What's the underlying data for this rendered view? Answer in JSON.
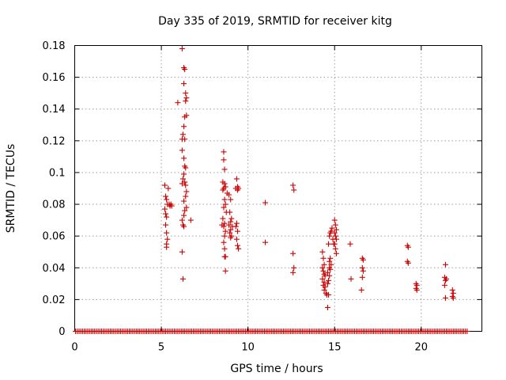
{
  "chart_data": {
    "type": "scatter",
    "title": "Day 335 of 2019, SRMTID for receiver kitg",
    "xlabel": "GPS time / hours",
    "ylabel": "SRMTID / TECUs",
    "xlim": [
      0,
      23.5
    ],
    "ylim": [
      0,
      0.18
    ],
    "xticks": [
      0,
      5,
      10,
      15,
      20
    ],
    "xtick_labels": [
      "0",
      "5",
      "10",
      "15",
      "20"
    ],
    "yticks": [
      0,
      0.02,
      0.04,
      0.06,
      0.08,
      0.1,
      0.12,
      0.14,
      0.16,
      0.18
    ],
    "ytick_labels": [
      "0",
      "0.02",
      "0.04",
      "0.06",
      "0.08",
      "0.1",
      "0.12",
      "0.14",
      "0.16",
      "0.18"
    ],
    "grid": true,
    "marker": "plus",
    "color": "#cc0000",
    "baseline_band": {
      "y": 0,
      "x_start": 0.05,
      "x_end": 22.7,
      "step": 0.1
    },
    "series": [
      {
        "name": "SRMTID",
        "points": [
          [
            5.2,
            0.092
          ],
          [
            5.25,
            0.085
          ],
          [
            5.3,
            0.083
          ],
          [
            5.35,
            0.08
          ],
          [
            5.2,
            0.077
          ],
          [
            5.25,
            0.074
          ],
          [
            5.3,
            0.072
          ],
          [
            5.25,
            0.067
          ],
          [
            5.3,
            0.062
          ],
          [
            5.35,
            0.058
          ],
          [
            5.3,
            0.055
          ],
          [
            5.3,
            0.053
          ],
          [
            5.4,
            0.09
          ],
          [
            5.45,
            0.08
          ],
          [
            5.5,
            0.079
          ],
          [
            5.55,
            0.08
          ],
          [
            5.6,
            0.079
          ],
          [
            5.95,
            0.144
          ],
          [
            6.2,
            0.178
          ],
          [
            6.3,
            0.166
          ],
          [
            6.35,
            0.165
          ],
          [
            6.3,
            0.156
          ],
          [
            6.4,
            0.15
          ],
          [
            6.45,
            0.147
          ],
          [
            6.4,
            0.145
          ],
          [
            6.35,
            0.135
          ],
          [
            6.45,
            0.136
          ],
          [
            6.3,
            0.129
          ],
          [
            6.25,
            0.124
          ],
          [
            6.2,
            0.121
          ],
          [
            6.35,
            0.121
          ],
          [
            6.2,
            0.114
          ],
          [
            6.3,
            0.109
          ],
          [
            6.35,
            0.104
          ],
          [
            6.4,
            0.103
          ],
          [
            6.3,
            0.099
          ],
          [
            6.25,
            0.096
          ],
          [
            6.35,
            0.094
          ],
          [
            6.2,
            0.093
          ],
          [
            6.4,
            0.092
          ],
          [
            6.45,
            0.088
          ],
          [
            6.4,
            0.085
          ],
          [
            6.3,
            0.082
          ],
          [
            6.45,
            0.078
          ],
          [
            6.35,
            0.076
          ],
          [
            6.3,
            0.073
          ],
          [
            6.2,
            0.07
          ],
          [
            6.25,
            0.067
          ],
          [
            6.3,
            0.066
          ],
          [
            6.2,
            0.05
          ],
          [
            6.25,
            0.033
          ],
          [
            6.7,
            0.07
          ],
          [
            8.6,
            0.113
          ],
          [
            8.6,
            0.108
          ],
          [
            8.65,
            0.102
          ],
          [
            8.55,
            0.094
          ],
          [
            8.65,
            0.093
          ],
          [
            8.6,
            0.09
          ],
          [
            8.7,
            0.091
          ],
          [
            8.55,
            0.089
          ],
          [
            8.8,
            0.087
          ],
          [
            8.65,
            0.083
          ],
          [
            8.7,
            0.08
          ],
          [
            8.6,
            0.078
          ],
          [
            8.75,
            0.075
          ],
          [
            8.55,
            0.071
          ],
          [
            8.65,
            0.068
          ],
          [
            8.5,
            0.067
          ],
          [
            8.6,
            0.066
          ],
          [
            8.7,
            0.063
          ],
          [
            8.65,
            0.06
          ],
          [
            8.6,
            0.056
          ],
          [
            8.65,
            0.052
          ],
          [
            8.7,
            0.047
          ],
          [
            8.65,
            0.047
          ],
          [
            8.7,
            0.038
          ],
          [
            8.9,
            0.086
          ],
          [
            9.0,
            0.083
          ],
          [
            8.95,
            0.075
          ],
          [
            9.05,
            0.071
          ],
          [
            9.0,
            0.069
          ],
          [
            8.9,
            0.067
          ],
          [
            9.1,
            0.066
          ],
          [
            9.0,
            0.064
          ],
          [
            8.95,
            0.062
          ],
          [
            9.05,
            0.06
          ],
          [
            9.0,
            0.059
          ],
          [
            9.35,
            0.096
          ],
          [
            9.4,
            0.091
          ],
          [
            9.45,
            0.09
          ],
          [
            9.3,
            0.09
          ],
          [
            9.4,
            0.089
          ],
          [
            9.35,
            0.068
          ],
          [
            9.3,
            0.066
          ],
          [
            9.4,
            0.063
          ],
          [
            9.35,
            0.058
          ],
          [
            9.4,
            0.054
          ],
          [
            9.45,
            0.052
          ],
          [
            11.0,
            0.081
          ],
          [
            11.0,
            0.056
          ],
          [
            12.6,
            0.092
          ],
          [
            12.65,
            0.089
          ],
          [
            12.6,
            0.049
          ],
          [
            12.65,
            0.04
          ],
          [
            12.6,
            0.037
          ],
          [
            14.3,
            0.05
          ],
          [
            14.35,
            0.046
          ],
          [
            14.4,
            0.042
          ],
          [
            14.3,
            0.04
          ],
          [
            14.35,
            0.038
          ],
          [
            14.4,
            0.036
          ],
          [
            14.45,
            0.035
          ],
          [
            14.3,
            0.033
          ],
          [
            14.4,
            0.031
          ],
          [
            14.35,
            0.029
          ],
          [
            14.45,
            0.028
          ],
          [
            14.4,
            0.026
          ],
          [
            14.5,
            0.024
          ],
          [
            14.55,
            0.023
          ],
          [
            14.6,
            0.015
          ],
          [
            14.65,
            0.023
          ],
          [
            14.6,
            0.03
          ],
          [
            14.65,
            0.032
          ],
          [
            14.7,
            0.035
          ],
          [
            14.6,
            0.037
          ],
          [
            14.75,
            0.039
          ],
          [
            14.7,
            0.04
          ],
          [
            14.8,
            0.042
          ],
          [
            14.7,
            0.044
          ],
          [
            14.75,
            0.046
          ],
          [
            14.65,
            0.055
          ],
          [
            14.7,
            0.06
          ],
          [
            14.75,
            0.062
          ],
          [
            14.8,
            0.063
          ],
          [
            14.85,
            0.065
          ],
          [
            14.9,
            0.058
          ],
          [
            14.95,
            0.055
          ],
          [
            15.0,
            0.07
          ],
          [
            15.05,
            0.067
          ],
          [
            15.1,
            0.064
          ],
          [
            15.0,
            0.062
          ],
          [
            15.05,
            0.06
          ],
          [
            15.1,
            0.058
          ],
          [
            15.0,
            0.055
          ],
          [
            15.05,
            0.052
          ],
          [
            15.1,
            0.049
          ],
          [
            15.9,
            0.055
          ],
          [
            15.95,
            0.033
          ],
          [
            16.6,
            0.046
          ],
          [
            16.65,
            0.045
          ],
          [
            16.6,
            0.04
          ],
          [
            16.65,
            0.038
          ],
          [
            16.6,
            0.034
          ],
          [
            16.55,
            0.026
          ],
          [
            19.2,
            0.054
          ],
          [
            19.25,
            0.053
          ],
          [
            19.2,
            0.044
          ],
          [
            19.25,
            0.043
          ],
          [
            19.7,
            0.03
          ],
          [
            19.75,
            0.029
          ],
          [
            19.7,
            0.027
          ],
          [
            19.75,
            0.026
          ],
          [
            21.4,
            0.042
          ],
          [
            21.35,
            0.034
          ],
          [
            21.45,
            0.033
          ],
          [
            21.4,
            0.032
          ],
          [
            21.35,
            0.029
          ],
          [
            21.4,
            0.021
          ],
          [
            21.8,
            0.026
          ],
          [
            21.85,
            0.024
          ],
          [
            21.8,
            0.022
          ],
          [
            21.85,
            0.021
          ]
        ]
      }
    ]
  }
}
